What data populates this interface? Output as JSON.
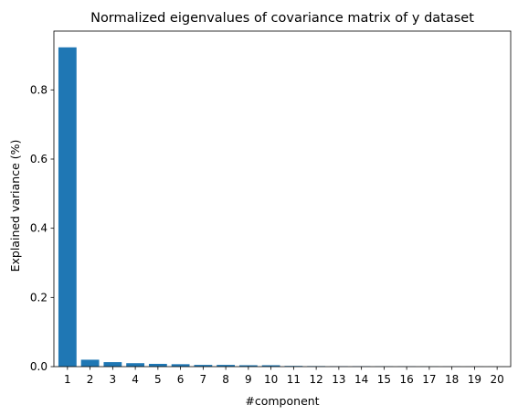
{
  "chart_data": {
    "type": "bar",
    "title": "Normalized eigenvalues of covariance matrix of y dataset",
    "xlabel": "#component",
    "ylabel": "Explained variance (%)",
    "categories": [
      "1",
      "2",
      "3",
      "4",
      "5",
      "6",
      "7",
      "8",
      "9",
      "10",
      "11",
      "12",
      "13",
      "14",
      "15",
      "16",
      "17",
      "18",
      "19",
      "20"
    ],
    "values": [
      0.923,
      0.02,
      0.013,
      0.01,
      0.008,
      0.007,
      0.005,
      0.005,
      0.004,
      0.004,
      0.002,
      0.0015,
      0.001,
      0.001,
      0.0008,
      0.0006,
      0.0005,
      0.0004,
      0.0003,
      0.0002
    ],
    "ylim": [
      0,
      0.97
    ],
    "yticks": [
      0.0,
      0.2,
      0.4,
      0.6,
      0.8
    ],
    "ytick_labels": [
      "0.0",
      "0.2",
      "0.4",
      "0.6",
      "0.8"
    ],
    "grid": false,
    "bar_color": "#1f77b4"
  }
}
